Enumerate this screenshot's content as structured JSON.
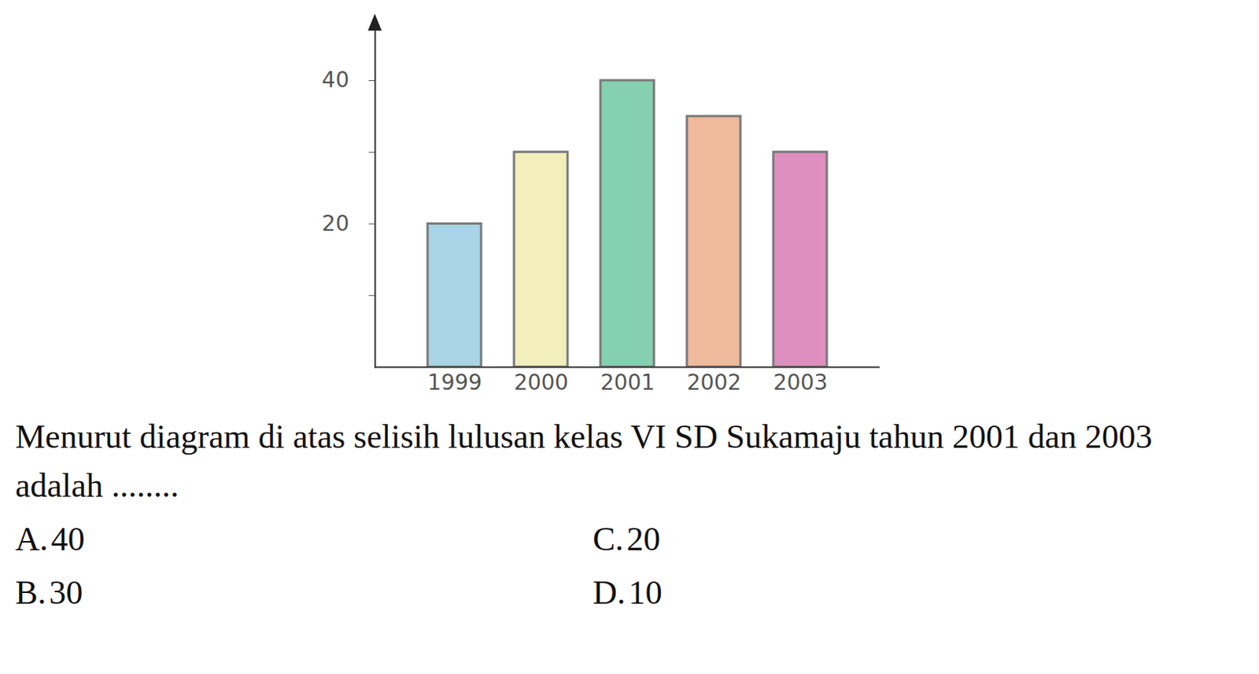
{
  "chart_data": {
    "type": "bar",
    "categories": [
      "1999",
      "2000",
      "2001",
      "2002",
      "2003"
    ],
    "values": [
      20,
      30,
      40,
      35,
      30
    ],
    "colors": [
      "#a9d3e6",
      "#f3efbd",
      "#86d0b2",
      "#efb99b",
      "#de8fc0"
    ],
    "ylim": [
      0,
      48
    ],
    "yticks": [
      {
        "value": 10,
        "label": null
      },
      20,
      {
        "value": 30,
        "label": null
      },
      40
    ],
    "grid": false
  },
  "question": {
    "text": "Menurut diagram di atas selisih lulusan kelas VI SD Sukamaju tahun 2001 dan 2003 adalah ........",
    "options": [
      {
        "letter": "A.",
        "value": 40
      },
      {
        "letter": "C.",
        "value": 20
      },
      {
        "letter": "B.",
        "value": 30
      },
      {
        "letter": "D.",
        "value": 10
      }
    ]
  }
}
